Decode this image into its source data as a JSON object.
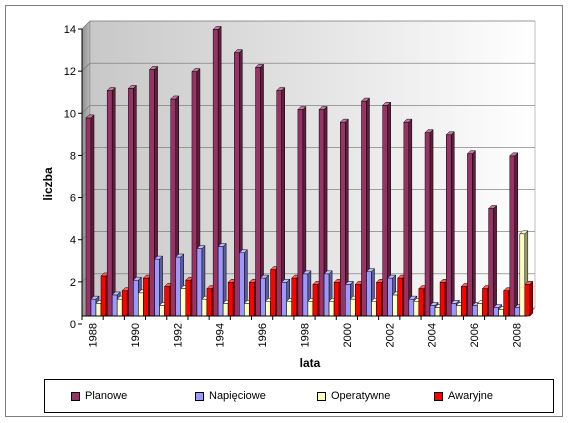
{
  "chart_data": {
    "type": "bar",
    "title": "",
    "xlabel": "lata",
    "ylabel": "liczba",
    "ylim": [
      0,
      14
    ],
    "yticks": [
      0,
      2,
      4,
      6,
      8,
      10,
      12,
      14
    ],
    "grid": true,
    "legend_position": "bottom",
    "categories": [
      "1988",
      "1989",
      "1990",
      "1991",
      "1992",
      "1993",
      "1994",
      "1995",
      "1996",
      "1997",
      "1998",
      "1999",
      "2000",
      "2001",
      "2002",
      "2003",
      "2004",
      "2005",
      "2006",
      "2007",
      "2008"
    ],
    "x_tick_labels": [
      "1988",
      "1990",
      "1992",
      "1994",
      "1996",
      "1998",
      "2000",
      "2002",
      "2004",
      "2006",
      "2008"
    ],
    "series": [
      {
        "name": "Planowe",
        "color": "#993366",
        "values": [
          9.4,
          10.7,
          10.8,
          11.7,
          10.3,
          11.6,
          13.6,
          12.5,
          11.8,
          10.7,
          9.8,
          9.8,
          9.2,
          10.2,
          10.0,
          9.2,
          8.7,
          8.6,
          7.7,
          5.1,
          7.6
        ]
      },
      {
        "name": "Napięciowe",
        "color": "#9999ff",
        "values": [
          0.8,
          1.0,
          1.7,
          2.7,
          2.8,
          3.2,
          3.3,
          3.0,
          1.8,
          1.6,
          2.0,
          2.0,
          1.5,
          2.1,
          1.8,
          0.8,
          0.5,
          0.6,
          0.5,
          0.4,
          0.4
        ]
      },
      {
        "name": "Operatywne",
        "color": "#ffffc0",
        "values": [
          0.6,
          0.8,
          1.1,
          0.5,
          1.3,
          0.8,
          0.6,
          0.6,
          0.7,
          0.7,
          0.7,
          0.7,
          0.8,
          0.7,
          1.0,
          0.7,
          0.4,
          0.5,
          0.6,
          0.3,
          3.9
        ]
      },
      {
        "name": "Awaryjne",
        "color": "#ff0000",
        "values": [
          1.9,
          1.2,
          1.8,
          1.4,
          1.7,
          1.3,
          1.6,
          1.6,
          2.2,
          1.8,
          1.5,
          1.6,
          1.5,
          1.6,
          1.8,
          1.3,
          1.6,
          1.4,
          1.3,
          1.2,
          1.5
        ]
      }
    ]
  }
}
